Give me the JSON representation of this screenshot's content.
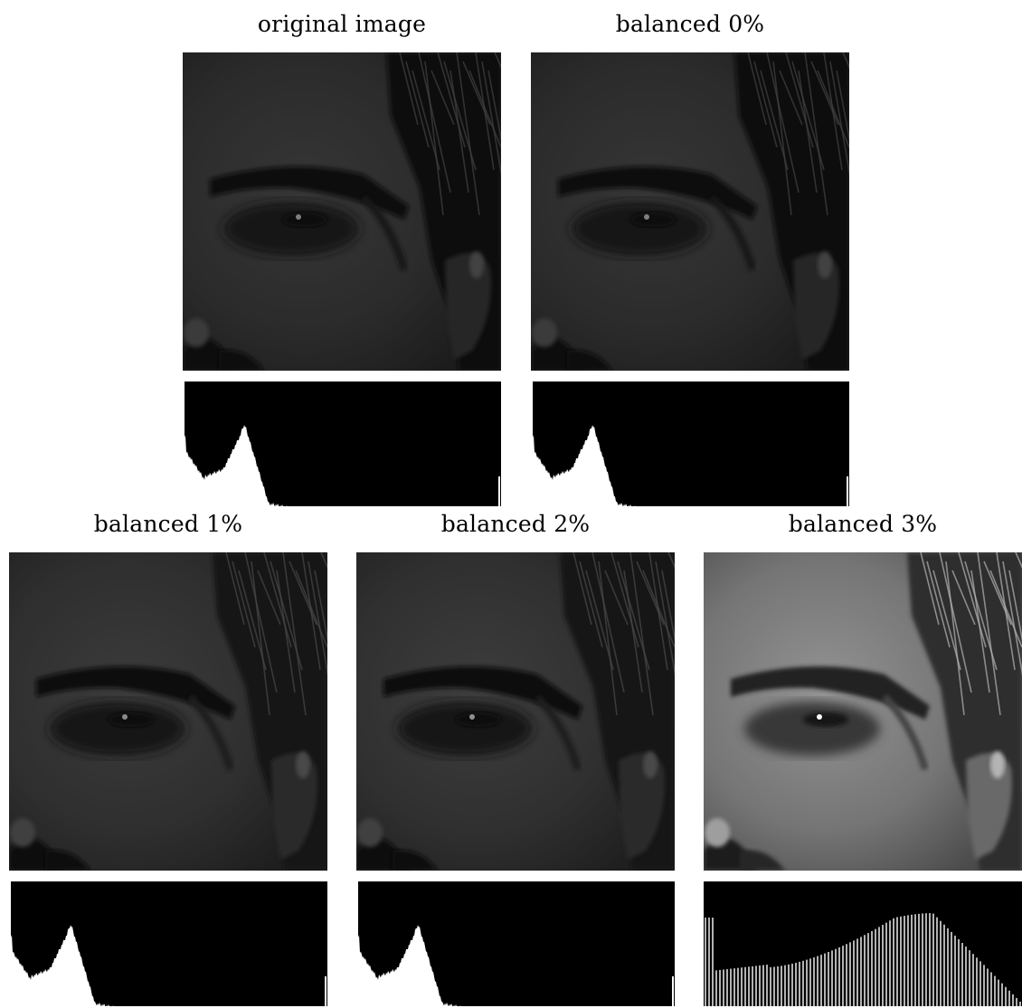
{
  "figure": {
    "panels": [
      {
        "caption": "original image",
        "brightness": 0.55,
        "contrast": 1.0,
        "hist_type": "dark"
      },
      {
        "caption": "balanced 0%",
        "brightness": 0.55,
        "contrast": 1.0,
        "hist_type": "dark"
      },
      {
        "caption": "balanced 1%",
        "brightness": 0.6,
        "contrast": 1.02,
        "hist_type": "dark"
      },
      {
        "caption": "balanced 2%",
        "brightness": 0.62,
        "contrast": 1.05,
        "hist_type": "dark"
      },
      {
        "caption": "balanced 3%",
        "brightness": 1.5,
        "contrast": 1.45,
        "hist_type": "spread"
      }
    ]
  },
  "colors": {
    "histogram_fill": "#ffffff",
    "histogram_background": "#000000",
    "photo_background": "#000000"
  }
}
